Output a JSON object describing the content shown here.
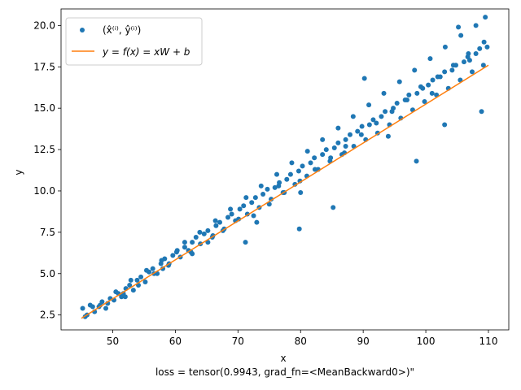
{
  "chart_data": {
    "type": "scatter",
    "xlabel": "x",
    "ylabel": "y",
    "caption": "loss = tensor(0.9943, grad_fn=<MeanBackward0>)\"",
    "xlim": [
      41.75,
      113.25
    ],
    "ylim": [
      1.6,
      21.0
    ],
    "xticks": [
      50,
      60,
      70,
      80,
      90,
      100,
      110
    ],
    "yticks": [
      2.5,
      5.0,
      7.5,
      10.0,
      12.5,
      15.0,
      17.5,
      20.0
    ],
    "xtick_labels": [
      "50",
      "60",
      "70",
      "80",
      "90",
      "100",
      "110"
    ],
    "ytick_labels": [
      "2.5",
      "5.0",
      "7.5",
      "10.0",
      "12.5",
      "15.0",
      "17.5",
      "20.0"
    ],
    "grid": false,
    "legend_position": "upper-left",
    "series": [
      {
        "name": "(x̂⁽ⁱ⁾, ŷ⁽ⁱ⁾)",
        "kind": "scatter",
        "color": "#1f77b4",
        "x": [
          45.2,
          45.9,
          46.4,
          47.1,
          47.8,
          48.3,
          48.9,
          49.6,
          50.2,
          50.9,
          51.4,
          52.1,
          52.7,
          53.3,
          53.9,
          54.5,
          55.2,
          55.8,
          56.4,
          57.1,
          57.7,
          58.3,
          58.9,
          59.6,
          60.2,
          60.8,
          61.5,
          62.1,
          62.7,
          63.3,
          64.0,
          64.6,
          65.2,
          65.9,
          66.5,
          67.1,
          67.8,
          68.4,
          69.0,
          69.6,
          70.3,
          70.9,
          71.5,
          72.2,
          72.8,
          73.4,
          74.0,
          74.7,
          75.3,
          75.9,
          76.6,
          77.2,
          77.8,
          78.4,
          79.1,
          79.7,
          80.3,
          81.0,
          81.6,
          82.2,
          82.8,
          83.5,
          84.1,
          84.7,
          85.4,
          86.0,
          86.6,
          87.2,
          87.9,
          88.5,
          89.1,
          89.8,
          90.4,
          91.0,
          91.6,
          92.3,
          92.9,
          93.5,
          94.2,
          94.8,
          95.4,
          96.0,
          96.7,
          97.3,
          97.9,
          98.6,
          99.2,
          99.8,
          100.4,
          101.1,
          101.7,
          102.3,
          103.0,
          103.6,
          104.2,
          104.8,
          105.5,
          106.1,
          106.7,
          107.4,
          108.0,
          108.6,
          109.2,
          109.8,
          45.6,
          46.8,
          48.0,
          49.2,
          50.5,
          51.7,
          52.9,
          54.1,
          55.4,
          56.6,
          57.8,
          59.0,
          60.3,
          61.5,
          62.7,
          63.9,
          65.2,
          66.4,
          67.6,
          68.8,
          70.1,
          71.3,
          72.5,
          73.7,
          75.0,
          76.2,
          77.4,
          78.6,
          79.9,
          81.1,
          82.3,
          83.5,
          84.8,
          86.0,
          87.2,
          88.4,
          89.7,
          90.9,
          92.1,
          93.3,
          94.6,
          95.8,
          97.0,
          98.2,
          99.5,
          100.7,
          101.9,
          103.1,
          104.4,
          105.6,
          106.8,
          108.0,
          109.3,
          52.0,
          58.0,
          66.0,
          73.0,
          80.0,
          87.0,
          94.0,
          101.0,
          107.0,
          109.5,
          105.2,
          103.0,
          71.2,
          76.5,
          85.2,
          62.5,
          90.2,
          98.5,
          108.9,
          79.8
        ],
        "y": [
          2.9,
          2.5,
          3.1,
          2.7,
          3.0,
          3.3,
          2.9,
          3.5,
          3.4,
          3.8,
          3.6,
          4.1,
          4.3,
          4.0,
          4.6,
          4.8,
          4.5,
          5.1,
          5.3,
          5.0,
          5.6,
          5.9,
          5.5,
          6.1,
          6.3,
          6.0,
          6.6,
          6.4,
          6.9,
          7.2,
          6.8,
          7.4,
          7.6,
          7.2,
          7.9,
          8.1,
          7.7,
          8.4,
          8.6,
          8.2,
          8.9,
          9.1,
          8.6,
          9.3,
          9.6,
          9.0,
          9.8,
          10.1,
          9.5,
          10.2,
          10.5,
          9.9,
          10.7,
          11.0,
          10.4,
          11.2,
          11.5,
          10.9,
          11.7,
          12.0,
          11.3,
          12.2,
          12.5,
          11.8,
          12.6,
          12.9,
          12.2,
          13.1,
          13.4,
          12.7,
          13.6,
          13.9,
          13.1,
          14.0,
          14.3,
          13.5,
          14.5,
          14.8,
          14.0,
          15.0,
          15.3,
          14.4,
          15.5,
          15.8,
          14.9,
          15.9,
          16.3,
          15.4,
          16.4,
          16.7,
          15.8,
          16.9,
          17.2,
          16.2,
          17.3,
          17.6,
          16.7,
          17.8,
          18.1,
          17.2,
          18.3,
          18.6,
          17.6,
          18.7,
          2.4,
          3.0,
          3.1,
          3.2,
          3.9,
          3.8,
          4.6,
          4.3,
          5.2,
          5.0,
          5.8,
          5.6,
          6.4,
          6.9,
          6.2,
          7.5,
          6.9,
          8.2,
          7.6,
          8.9,
          8.3,
          9.6,
          8.5,
          10.3,
          9.2,
          11.0,
          9.9,
          11.7,
          10.6,
          12.4,
          11.3,
          13.1,
          12.0,
          13.8,
          12.7,
          14.5,
          13.4,
          15.2,
          14.1,
          15.9,
          14.8,
          16.6,
          15.5,
          17.3,
          16.2,
          18.0,
          16.9,
          18.7,
          17.6,
          19.4,
          18.3,
          20.0,
          19.0,
          3.6,
          5.3,
          7.3,
          8.1,
          9.9,
          12.3,
          13.3,
          15.9,
          17.9,
          20.5,
          19.9,
          14.0,
          6.9,
          10.3,
          9.0,
          6.3,
          16.8,
          11.8,
          14.8,
          7.7
        ]
      },
      {
        "name": "y = f(x) = xW + b",
        "kind": "line",
        "color": "#ff7f0e",
        "x": [
          45.0,
          110.0
        ],
        "y": [
          2.3,
          17.6
        ]
      }
    ]
  }
}
